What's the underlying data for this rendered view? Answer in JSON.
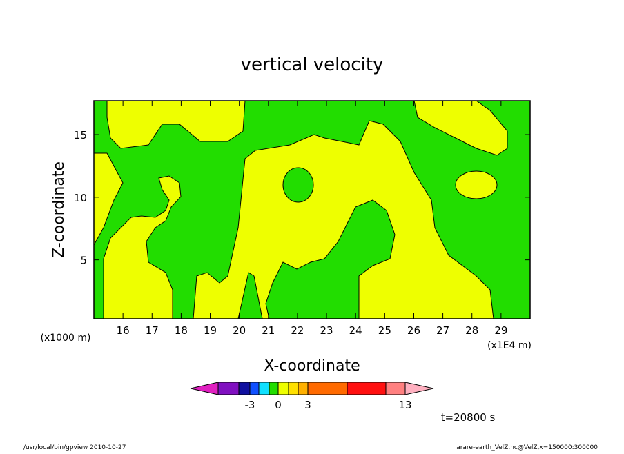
{
  "chart_data": {
    "type": "contour",
    "title": "vertical velocity",
    "x_label": "X-coordinate",
    "y_label": "Z-coordinate",
    "x_unit": "(x1E4 m)",
    "y_unit": "(x1000 m)",
    "xlim": [
      15,
      30
    ],
    "xticks": [
      16,
      17,
      18,
      19,
      20,
      21,
      22,
      23,
      24,
      25,
      26,
      27,
      28,
      29
    ],
    "ylim": [
      0.3,
      17.7
    ],
    "yticks": [
      5,
      10,
      15
    ],
    "field_colors": [
      "#22dd00",
      "#eeff00"
    ],
    "colorbar": {
      "ticks": [
        -3,
        0,
        3,
        13
      ],
      "colors": [
        "#e020c0",
        "#8010c0",
        "#1010a0",
        "#1050ff",
        "#10e0ff",
        "#22dd00",
        "#eeff00",
        "#ffe000",
        "#ffb000",
        "#ff6a00",
        "#ff1010",
        "#ff8080",
        "#ffb0c0"
      ]
    },
    "time_label": "t=20800 s",
    "footer_left": "/usr/local/bin/gpview  2010-10-27",
    "footer_right": "arare-earth_VelZ.nc@VelZ,x=150000:300000"
  }
}
